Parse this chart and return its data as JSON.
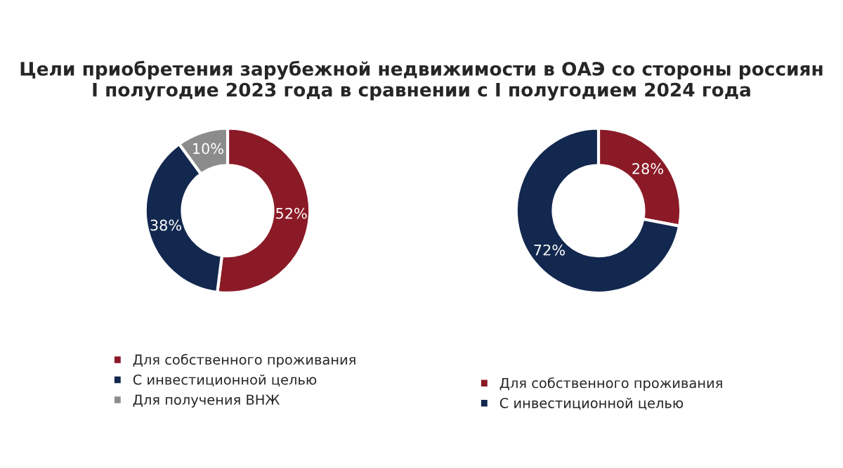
{
  "chart_data": [
    {
      "type": "donut",
      "title": "Цели приобретения зарубежной недвижимости в ОАЭ со стороны россиян\nI полугодие 2023 года в сравнении с I полугодием 2024 года",
      "categories": [
        "Для собственного проживания",
        "С инвестиционной целью",
        "Для получения ВНЖ"
      ],
      "values": [
        52,
        38,
        10
      ],
      "colors": [
        "#8b1a27",
        "#13284f",
        "#8c8c8c"
      ],
      "value_labels": [
        "52%",
        "38%",
        "10%"
      ],
      "legend": "bottom"
    },
    {
      "type": "donut",
      "categories": [
        "Для собственного проживания",
        "С инвестиционной целью"
      ],
      "values": [
        28,
        72
      ],
      "colors": [
        "#8b1a27",
        "#13284f"
      ],
      "value_labels": [
        "28%",
        "72%"
      ],
      "legend": "bottom"
    }
  ]
}
